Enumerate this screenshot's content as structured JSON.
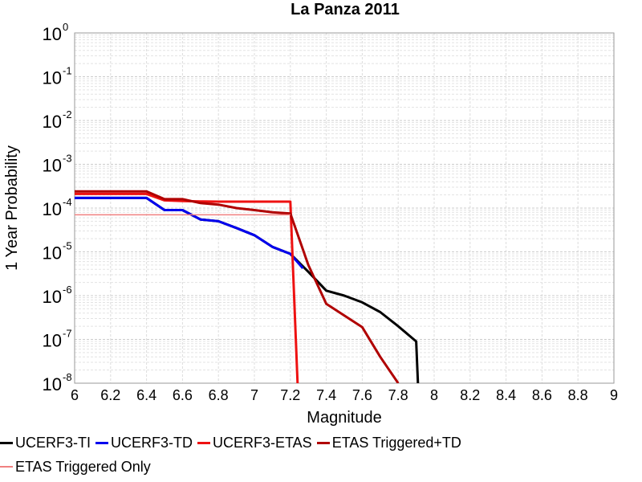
{
  "chart_data": {
    "type": "line",
    "title": "La Panza 2011",
    "xlabel": "Magnitude",
    "ylabel": "1 Year Probability",
    "xlim": [
      6,
      9
    ],
    "ylim": [
      1e-08,
      1
    ],
    "yscale": "log",
    "grid": true,
    "legend_position": "bottom",
    "x_ticks": [
      "6",
      "6.2",
      "6.4",
      "6.6",
      "6.8",
      "7",
      "7.2",
      "7.4",
      "7.6",
      "7.8",
      "8",
      "8.2",
      "8.4",
      "8.6",
      "8.8",
      "9"
    ],
    "y_ticks": [
      {
        "base": "10",
        "exp": "-8",
        "value": 1e-08
      },
      {
        "base": "10",
        "exp": "-7",
        "value": 1e-07
      },
      {
        "base": "10",
        "exp": "-6",
        "value": 1e-06
      },
      {
        "base": "10",
        "exp": "-5",
        "value": 1e-05
      },
      {
        "base": "10",
        "exp": "-4",
        "value": 0.0001
      },
      {
        "base": "10",
        "exp": "-3",
        "value": 0.001
      },
      {
        "base": "10",
        "exp": "-2",
        "value": 0.01
      },
      {
        "base": "10",
        "exp": "-1",
        "value": 0.1
      },
      {
        "base": "10",
        "exp": "0",
        "value": 1
      }
    ],
    "series": [
      {
        "name": "UCERF3-TI",
        "color": "#000000",
        "width": 3,
        "x": [
          6.0,
          6.1,
          6.2,
          6.3,
          6.4,
          6.5,
          6.6,
          6.7,
          6.8,
          6.9,
          7.0,
          7.1,
          7.2,
          7.3,
          7.4,
          7.5,
          7.6,
          7.7,
          7.8,
          7.9,
          7.91
        ],
        "y": [
          0.00017,
          0.00017,
          0.00017,
          0.00017,
          0.00017,
          9e-05,
          9e-05,
          5.5e-05,
          5e-05,
          3.5e-05,
          2.4e-05,
          1.3e-05,
          9e-06,
          3.5e-06,
          1.3e-06,
          1e-06,
          7e-07,
          4.2e-07,
          2e-07,
          9e-08,
          1e-08
        ]
      },
      {
        "name": "UCERF3-TD",
        "color": "#0000ee",
        "width": 3,
        "x": [
          6.0,
          6.1,
          6.2,
          6.3,
          6.4,
          6.5,
          6.6,
          6.7,
          6.8,
          6.9,
          7.0,
          7.1,
          7.2,
          7.27
        ],
        "y": [
          0.00017,
          0.00017,
          0.00017,
          0.00017,
          0.00017,
          9e-05,
          9e-05,
          5.5e-05,
          5e-05,
          3.5e-05,
          2.4e-05,
          1.3e-05,
          9e-06,
          4.2e-06
        ]
      },
      {
        "name": "UCERF3-ETAS",
        "color": "#ee1111",
        "width": 3,
        "x": [
          6.0,
          6.4,
          6.5,
          6.6,
          6.7,
          6.8,
          6.9,
          7.0,
          7.1,
          7.2,
          7.24
        ],
        "y": [
          0.00021,
          0.00021,
          0.00015,
          0.000145,
          0.000142,
          0.00014,
          0.00014,
          0.00014,
          0.00014,
          0.00014,
          1e-08
        ]
      },
      {
        "name": "ETAS Triggered+TD",
        "color": "#b00000",
        "width": 3,
        "x": [
          6.0,
          6.1,
          6.2,
          6.3,
          6.4,
          6.5,
          6.6,
          6.7,
          6.8,
          6.9,
          7.0,
          7.1,
          7.2,
          7.3,
          7.4,
          7.5,
          7.6,
          7.7,
          7.8
        ],
        "y": [
          0.00024,
          0.00024,
          0.00024,
          0.00024,
          0.00024,
          0.00016,
          0.00016,
          0.00013,
          0.00012,
          0.0001,
          9e-05,
          8e-05,
          7.5e-05,
          5e-06,
          6.5e-07,
          3.5e-07,
          1.9e-07,
          4e-08,
          1e-08
        ]
      },
      {
        "name": "ETAS Triggered Only",
        "color": "#f08080",
        "width": 1.5,
        "x": [
          6.0,
          7.2
        ],
        "y": [
          7e-05,
          7e-05
        ]
      }
    ]
  }
}
